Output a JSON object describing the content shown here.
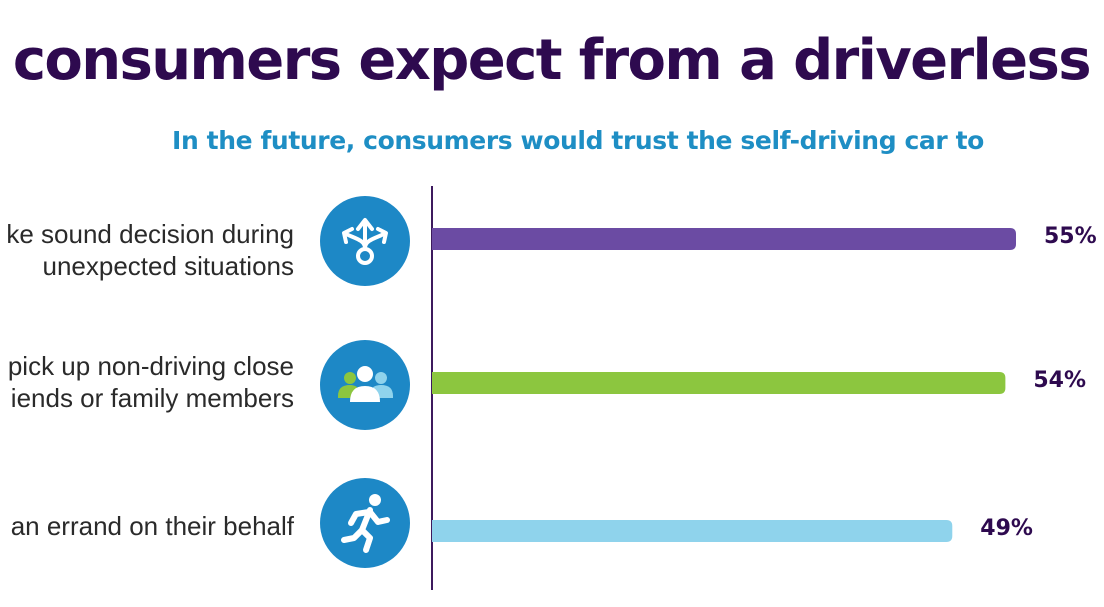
{
  "title": "hat do consumers expect from a driverless",
  "subtitle": "In the future, consumers would trust the self-driving car to",
  "chart_data": {
    "type": "bar",
    "orientation": "horizontal",
    "title": "In the future, consumers would trust the self-driving car to",
    "categories": [
      "ke sound decision during\nunexpected situations",
      "pick up non-driving close\niends or family members",
      "an errand on their behalf"
    ],
    "values": [
      55,
      54,
      49
    ],
    "value_labels": [
      "55%",
      "54%",
      "49%"
    ],
    "unit": "%",
    "xlim": [
      0,
      55
    ],
    "grid": false,
    "legend": "none"
  },
  "icons": [
    "decision-arrows-icon",
    "people-group-icon",
    "running-person-icon"
  ],
  "colors": {
    "title": "#2e0a4f",
    "subtitle": "#1e8ec4",
    "axis": "#3d1a5e",
    "icon_bg": "#1d88c6",
    "bars": [
      "#6b4ba3",
      "#8cc63f",
      "#8fd3ec"
    ]
  }
}
